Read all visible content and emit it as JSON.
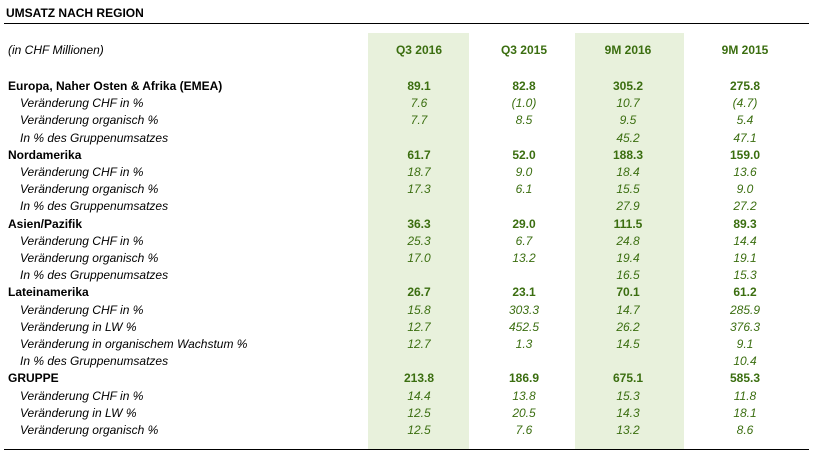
{
  "title": "UMSATZ NACH REGION",
  "unit_label": "(in CHF Millionen)",
  "columns": [
    "Q3 2016",
    "Q3 2015",
    "9M 2016",
    "9M 2015"
  ],
  "rows": [
    {
      "type": "main",
      "label": "Europa, Naher Osten & Afrika (EMEA)",
      "values": [
        "89.1",
        "82.8",
        "305.2",
        "275.8"
      ]
    },
    {
      "type": "sub",
      "label": "Veränderung CHF in %",
      "values": [
        "7.6",
        "(1.0)",
        "10.7",
        "(4.7)"
      ]
    },
    {
      "type": "sub",
      "label": "Veränderung organisch %",
      "values": [
        "7.7",
        "8.5",
        "9.5",
        "5.4"
      ]
    },
    {
      "type": "sub",
      "label": "In % des Gruppenumsatzes",
      "values": [
        "",
        "",
        "45.2",
        "47.1"
      ]
    },
    {
      "type": "main",
      "label": "Nordamerika",
      "values": [
        "61.7",
        "52.0",
        "188.3",
        "159.0"
      ]
    },
    {
      "type": "sub",
      "label": "Veränderung CHF in %",
      "values": [
        "18.7",
        "9.0",
        "18.4",
        "13.6"
      ]
    },
    {
      "type": "sub",
      "label": "Veränderung organisch %",
      "values": [
        "17.3",
        "6.1",
        "15.5",
        "9.0"
      ]
    },
    {
      "type": "sub",
      "label": "In % des Gruppenumsatzes",
      "values": [
        "",
        "",
        "27.9",
        "27.2"
      ]
    },
    {
      "type": "main",
      "label": "Asien/Pazifik",
      "values": [
        "36.3",
        "29.0",
        "111.5",
        "89.3"
      ]
    },
    {
      "type": "sub",
      "label": "Veränderung CHF in %",
      "values": [
        "25.3",
        "6.7",
        "24.8",
        "14.4"
      ]
    },
    {
      "type": "sub",
      "label": "Veränderung organisch %",
      "values": [
        "17.0",
        "13.2",
        "19.4",
        "19.1"
      ]
    },
    {
      "type": "sub",
      "label": "In % des Gruppenumsatzes",
      "values": [
        "",
        "",
        "16.5",
        "15.3"
      ]
    },
    {
      "type": "main",
      "label": "Lateinamerika",
      "values": [
        "26.7",
        "23.1",
        "70.1",
        "61.2"
      ]
    },
    {
      "type": "sub",
      "label": "Veränderung CHF in %",
      "values": [
        "15.8",
        "303.3",
        "14.7",
        "285.9"
      ]
    },
    {
      "type": "sub",
      "label": "Veränderung in LW %",
      "values": [
        "12.7",
        "452.5",
        "26.2",
        "376.3"
      ]
    },
    {
      "type": "sub",
      "label": "Veränderung in organischem Wachstum %",
      "values": [
        "12.7",
        "1.3",
        "14.5",
        "9.1"
      ]
    },
    {
      "type": "sub",
      "label": "In % des Gruppenumsatzes",
      "values": [
        "",
        "",
        "",
        "10.4"
      ]
    },
    {
      "type": "main",
      "label": "GRUPPE",
      "values": [
        "213.8",
        "186.9",
        "675.1",
        "585.3"
      ]
    },
    {
      "type": "sub",
      "label": "Veränderung CHF in %",
      "values": [
        "14.4",
        "13.8",
        "15.3",
        "11.8"
      ]
    },
    {
      "type": "sub",
      "label": "Veränderung in LW %",
      "values": [
        "12.5",
        "20.5",
        "14.3",
        "18.1"
      ]
    },
    {
      "type": "sub",
      "label": "Veränderung organisch %",
      "values": [
        "12.5",
        "7.6",
        "13.2",
        "8.6"
      ]
    }
  ]
}
